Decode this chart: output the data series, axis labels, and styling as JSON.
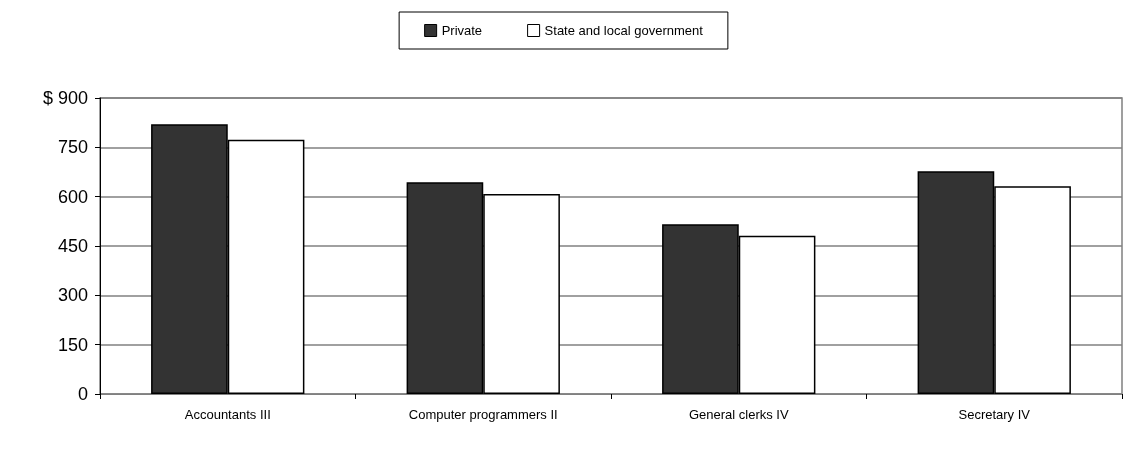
{
  "chart_data": {
    "type": "bar",
    "categories": [
      "Accountants III",
      "Computer programmers II",
      "General clerks IV",
      "Secretary IV"
    ],
    "series": [
      {
        "name": "Private",
        "color": "#333333",
        "values": [
          820,
          644,
          516,
          677
        ]
      },
      {
        "name": "State and local government",
        "color": "#ffffff",
        "values": [
          773,
          608,
          481,
          632
        ]
      }
    ],
    "ylim": [
      0,
      900
    ],
    "yticks": [
      0,
      150,
      300,
      450,
      600,
      750,
      {
        "value": 900,
        "label": "$ 900"
      }
    ],
    "grid": "y",
    "legend": "top"
  }
}
